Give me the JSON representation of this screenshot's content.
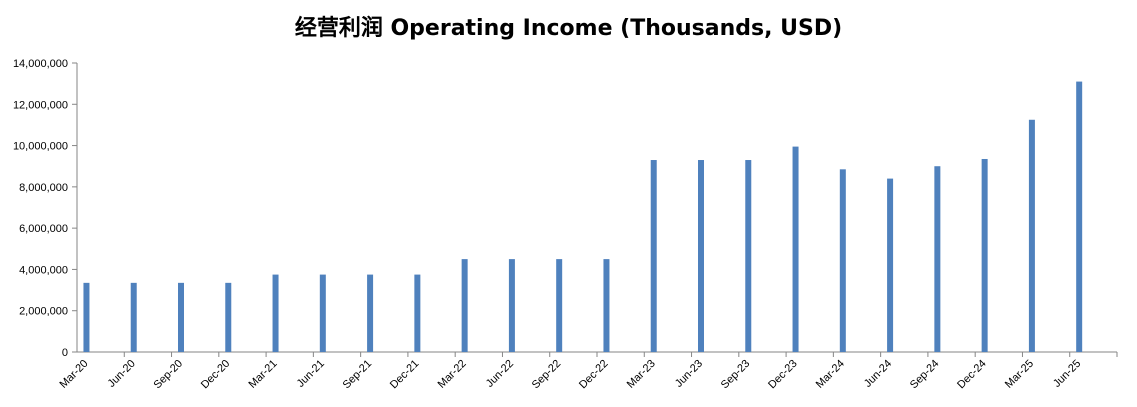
{
  "chart_data": {
    "type": "bar",
    "title": "经营利润 Operating Income (Thousands, USD)",
    "xlabel": "",
    "ylabel": "",
    "ylim": [
      0,
      14000000
    ],
    "yticks": [
      "0",
      "2,000,000",
      "4,000,000",
      "6,000,000",
      "8,000,000",
      "10,000,000",
      "12,000,000",
      "14,000,000"
    ],
    "grid": false,
    "legend": "none",
    "bar_color": "#4F81BD",
    "categories": [
      "Mar-20",
      "Jun-20",
      "Sep-20",
      "Dec-20",
      "Mar-21",
      "Jun-21",
      "Sep-21",
      "Dec-21",
      "Mar-22",
      "Jun-22",
      "Sep-22",
      "Dec-22",
      "Mar-23",
      "Jun-23",
      "Sep-23",
      "Dec-23",
      "Mar-24",
      "Jun-24",
      "Sep-24",
      "Dec-24",
      "Mar-25",
      "Jun-25"
    ],
    "values": [
      3350000,
      3350000,
      3350000,
      3350000,
      3750000,
      3750000,
      3750000,
      3750000,
      4500000,
      4500000,
      4500000,
      4500000,
      9300000,
      9300000,
      9300000,
      9950000,
      8850000,
      8400000,
      9000000,
      9350000,
      11250000,
      13100000
    ]
  }
}
